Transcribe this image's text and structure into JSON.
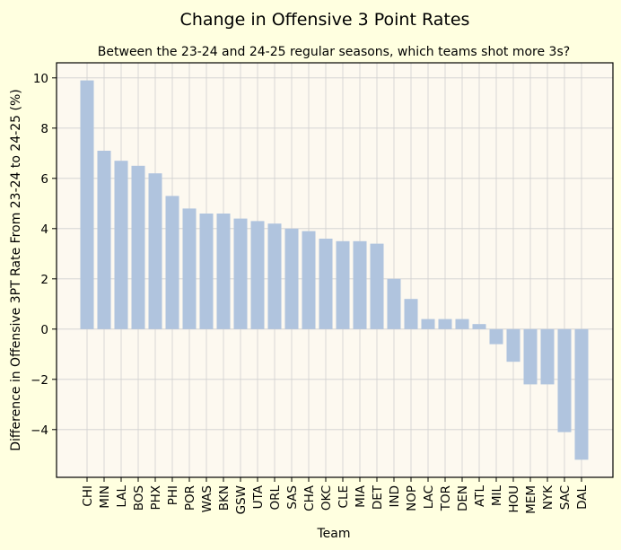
{
  "chart_data": {
    "type": "bar",
    "title": "Change in Offensive 3 Point Rates",
    "subtitle": "Between the 23-24 and 24-25 regular seasons, which teams shot more 3s?",
    "xlabel": "Team",
    "ylabel": "Difference in Offensive 3PT Rate From 23-24 to 24-25 (%)",
    "categories": [
      "CHI",
      "MIN",
      "LAL",
      "BOS",
      "PHX",
      "PHI",
      "POR",
      "WAS",
      "BKN",
      "GSW",
      "UTA",
      "ORL",
      "SAS",
      "CHA",
      "OKC",
      "CLE",
      "MIA",
      "DET",
      "IND",
      "NOP",
      "LAC",
      "TOR",
      "DEN",
      "ATL",
      "MIL",
      "HOU",
      "MEM",
      "NYK",
      "SAC",
      "DAL"
    ],
    "values": [
      9.9,
      7.1,
      6.7,
      6.5,
      6.2,
      5.3,
      4.8,
      4.6,
      4.6,
      4.4,
      4.3,
      4.2,
      4.0,
      3.9,
      3.6,
      3.5,
      3.5,
      3.4,
      2.0,
      1.2,
      0.4,
      0.4,
      0.4,
      0.2,
      -0.6,
      -1.3,
      -2.2,
      -2.2,
      -4.1,
      -5.2
    ],
    "yticks": [
      -4,
      -2,
      0,
      2,
      4,
      6,
      8,
      10
    ],
    "ylim": [
      -5.9,
      10.6
    ],
    "grid": true,
    "colors": {
      "figure_bg": "#ffffe0",
      "plot_bg": "#fdf9f0",
      "bar": "#b0c4de",
      "grid": "#d0d0d0",
      "axis": "#000000"
    }
  }
}
